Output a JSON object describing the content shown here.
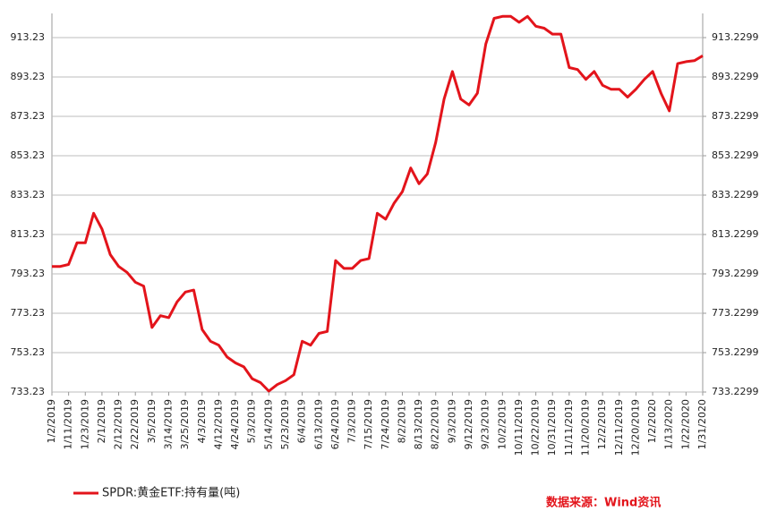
{
  "chart_data": {
    "type": "line",
    "categories": [
      "1/2/2019",
      null,
      "1/11/2019",
      null,
      "1/23/2019",
      null,
      "2/1/2019",
      null,
      "2/12/2019",
      null,
      "2/22/2019",
      null,
      "3/5/2019",
      null,
      "3/14/2019",
      null,
      "3/25/2019",
      null,
      "4/3/2019",
      null,
      "4/12/2019",
      null,
      "4/24/2019",
      null,
      "5/3/2019",
      null,
      "5/14/2019",
      null,
      "5/23/2019",
      null,
      "6/4/2019",
      null,
      "6/13/2019",
      null,
      "6/24/2019",
      null,
      "7/3/2019",
      null,
      "7/15/2019",
      null,
      "7/24/2019",
      null,
      "8/2/2019",
      null,
      "8/13/2019",
      null,
      "8/22/2019",
      null,
      "9/3/2019",
      null,
      "9/12/2019",
      null,
      "9/23/2019",
      null,
      "10/2/2019",
      null,
      "10/11/2019",
      null,
      "10/22/2019",
      null,
      "10/31/2019",
      null,
      "11/11/2019",
      null,
      "11/20/2019",
      null,
      "12/2/2019",
      null,
      "12/11/2019",
      null,
      "12/20/2019",
      null,
      "1/2/2020",
      null,
      "1/13/2020",
      null,
      "1/22/2020",
      null,
      "1/31/2020"
    ],
    "series": [
      {
        "name": "SPDR:黄金ETF:持有量(吨)",
        "color": "#e3141b",
        "values": [
          797,
          797,
          798,
          809,
          809,
          824,
          816,
          803,
          797,
          794,
          789,
          787,
          766,
          772,
          771,
          779,
          784,
          785,
          765,
          759,
          757,
          751,
          748,
          746,
          740,
          738,
          733.7,
          737,
          739,
          742,
          759,
          757,
          763,
          764,
          800,
          796,
          796,
          800,
          801,
          824,
          821,
          829,
          835,
          847,
          839,
          844,
          860,
          882,
          896,
          882,
          879,
          885,
          910,
          923,
          924,
          924,
          921,
          924,
          919,
          918,
          915,
          915,
          898,
          897,
          892,
          896,
          889,
          887,
          887,
          883,
          887,
          892,
          896,
          885,
          876,
          900,
          901,
          901.5,
          904
        ]
      }
    ],
    "ylim": [
      733.23,
      925.5
    ],
    "yticks": [
      733.23,
      753.23,
      773.23,
      793.23,
      813.23,
      833.23,
      853.23,
      873.23,
      893.23,
      913.23
    ],
    "y2lim": [
      733.2299,
      925.4999
    ],
    "y2ticks": [
      733.2299,
      753.2299,
      773.2299,
      793.2299,
      813.2299,
      833.2299,
      853.2299,
      873.2299,
      893.2299,
      913.2299
    ],
    "grid": true,
    "legend": "bottom-left",
    "source": "数据来源：Wind资讯"
  }
}
